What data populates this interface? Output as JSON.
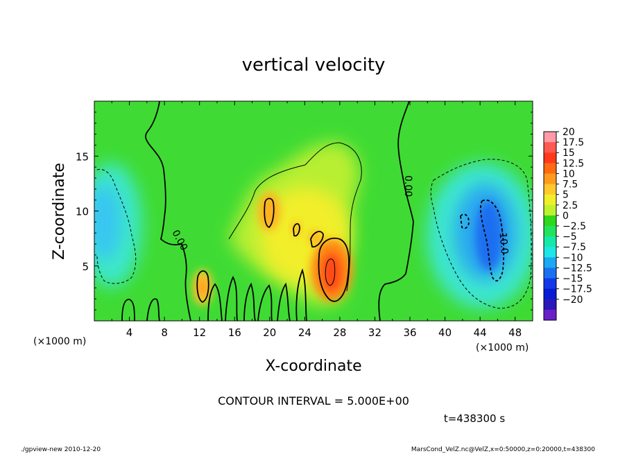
{
  "chart_data": {
    "type": "heatmap",
    "title": "vertical velocity",
    "xlabel": "X-coordinate",
    "ylabel": "Z-coordinate",
    "x_unit_left": "(×1000 m)",
    "x_unit_right": "(×1000 m)",
    "xlim": [
      0,
      50
    ],
    "ylim": [
      0,
      20
    ],
    "x_ticks": [
      4,
      8,
      12,
      16,
      20,
      24,
      28,
      32,
      36,
      40,
      44,
      48
    ],
    "y_ticks": [
      5,
      10,
      15
    ],
    "colorbar_levels": [
      "20",
      "17.5",
      "15",
      "12.5",
      "10",
      "7.5",
      "5",
      "2.5",
      "0",
      "−2.5",
      "−5",
      "−7.5",
      "−10",
      "−12.5",
      "−15",
      "−17.5",
      "−20"
    ],
    "colorbar_colors": [
      "#ff9aa6",
      "#ff5a50",
      "#ff3a1a",
      "#ff6a12",
      "#ff9a1e",
      "#ffc82d",
      "#f0ef2a",
      "#bef22e",
      "#2fd81c",
      "#21e35c",
      "#15e9a7",
      "#1fe6e6",
      "#1aa9f2",
      "#1a71f0",
      "#1438e8",
      "#0a1bd4",
      "#2a18b8",
      "#6a20c8"
    ],
    "contour_interval": "CONTOUR INTERVAL = 5.000E+00",
    "contour_labels": [
      "0.00",
      "0.00",
      "-10.0"
    ],
    "time": "t=438300 s",
    "grid": false,
    "legend": "right"
  },
  "footer": {
    "left": "./gpview-new  2010-12-20",
    "right": "MarsCond_VelZ.nc@VelZ,x=0:50000,z=0:20000,t=438300"
  }
}
